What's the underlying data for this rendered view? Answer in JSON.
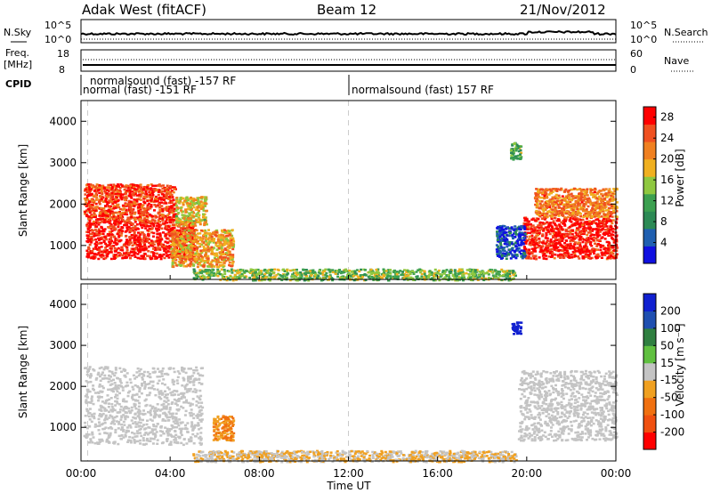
{
  "header": {
    "station": "Adak West (fitACF)",
    "beam": "Beam 12",
    "date": "21/Nov/2012"
  },
  "noise_panel": {
    "left_label": "N.Sky",
    "right_label": "N.Search",
    "left_ticks": [
      "10^5",
      "10^0"
    ],
    "right_ticks": [
      "10^5",
      "10^0"
    ]
  },
  "freq_panel": {
    "left_label_1": "Freq.",
    "left_label_2": "[MHz]",
    "right_label": "Nave",
    "left_ticks": [
      "18",
      "8"
    ],
    "right_ticks": [
      "60",
      "0"
    ]
  },
  "cpid": {
    "label": "CPID",
    "segments": [
      {
        "text_top": "normalsound (fast) -157 RF",
        "text_bottom": "normal (fast) -151 RF"
      },
      {
        "text_top": "",
        "text_bottom": "normalsound (fast) 157 RF"
      }
    ]
  },
  "x_axis": {
    "title": "Time UT",
    "ticks": [
      "00:00",
      "04:00",
      "08:00",
      "12:00",
      "16:00",
      "20:00",
      "00:00"
    ]
  },
  "power_panel": {
    "ylabel": "Slant Range [km]",
    "y_ticks": [
      "1000",
      "2000",
      "3000",
      "4000"
    ],
    "colorbar_label": "Power [dB]",
    "colorbar_ticks": [
      "4",
      "8",
      "12",
      "16",
      "20",
      "24",
      "28"
    ]
  },
  "velocity_panel": {
    "ylabel": "Slant Range [km]",
    "y_ticks": [
      "1000",
      "2000",
      "3000",
      "4000"
    ],
    "colorbar_label": "Velocity [m s⁻¹]",
    "colorbar_ticks": [
      "200",
      "100",
      "50",
      "15",
      "-15",
      "-50",
      "-100",
      "-200"
    ]
  },
  "chart_data": [
    {
      "type": "line",
      "title": "N.Sky",
      "x_range_hours": [
        0,
        24
      ],
      "y_scale": "log",
      "ylim": [
        1,
        100000
      ]
    },
    {
      "type": "line",
      "title": "Freq. [MHz]",
      "x_range_hours": [
        0,
        24
      ],
      "ylim": [
        8,
        18
      ],
      "right_axis": {
        "label": "Nave",
        "ylim": [
          0,
          60
        ]
      }
    },
    {
      "type": "heatmap",
      "title": "Power [dB]",
      "x_range_hours": [
        0,
        24
      ],
      "ylim": [
        180,
        4500
      ],
      "colorbar": {
        "min": 0,
        "max": 30,
        "colors": [
          "#1010e0",
          "#1f5fb0",
          "#2c8a55",
          "#3ca050",
          "#8fc840",
          "#f0b020",
          "#f08020",
          "#f05020",
          "#ff0000"
        ]
      },
      "regions": [
        {
          "name": "dayside band",
          "t0": 0.2,
          "t1": 5.1,
          "r0": 700,
          "r1": 1600,
          "value": 28
        },
        {
          "name": "upper streaks",
          "t0": 0.1,
          "t1": 4.2,
          "r0": 1600,
          "r1": 2500,
          "value": 26
        },
        {
          "name": "arc",
          "t0": 4.2,
          "t1": 5.6,
          "r0": 1500,
          "r1": 2200,
          "value": 18
        },
        {
          "name": "patch",
          "t0": 4.0,
          "t1": 6.8,
          "r0": 500,
          "r1": 1400,
          "value": 20
        },
        {
          "name": "ground",
          "t0": 5.0,
          "t1": 19.5,
          "r0": 180,
          "r1": 450,
          "value": 14
        },
        {
          "name": "evening band",
          "t0": 19.8,
          "t1": 24.0,
          "r0": 700,
          "r1": 1700,
          "value": 28
        },
        {
          "name": "evening upper",
          "t0": 20.3,
          "t1": 24.0,
          "r0": 1700,
          "r1": 2400,
          "value": 22
        },
        {
          "name": "blob",
          "t0": 19.2,
          "t1": 19.7,
          "r0": 3100,
          "r1": 3500,
          "value": 12
        },
        {
          "name": "blue scatter",
          "t0": 18.6,
          "t1": 19.9,
          "r0": 700,
          "r1": 1500,
          "value": 4
        }
      ]
    },
    {
      "type": "heatmap",
      "title": "Velocity [m s⁻¹]",
      "x_range_hours": [
        0,
        24
      ],
      "ylim": [
        180,
        4500
      ],
      "colorbar": {
        "min": -200,
        "max": 200
      },
      "regions": [
        {
          "name": "dayside grey",
          "t0": 0.1,
          "t1": 5.4,
          "r0": 600,
          "r1": 2500,
          "value": 0
        },
        {
          "name": "orange plume",
          "t0": 5.9,
          "t1": 6.8,
          "r0": 700,
          "r1": 1300,
          "value": -60
        },
        {
          "name": "ground",
          "t0": 5.0,
          "t1": 19.5,
          "r0": 180,
          "r1": 450,
          "value": -20
        },
        {
          "name": "evening grey",
          "t0": 19.6,
          "t1": 24.0,
          "r0": 700,
          "r1": 2400,
          "value": 0
        },
        {
          "name": "blue blob",
          "t0": 19.3,
          "t1": 19.7,
          "r0": 3300,
          "r1": 3600,
          "value": 200
        }
      ]
    }
  ]
}
